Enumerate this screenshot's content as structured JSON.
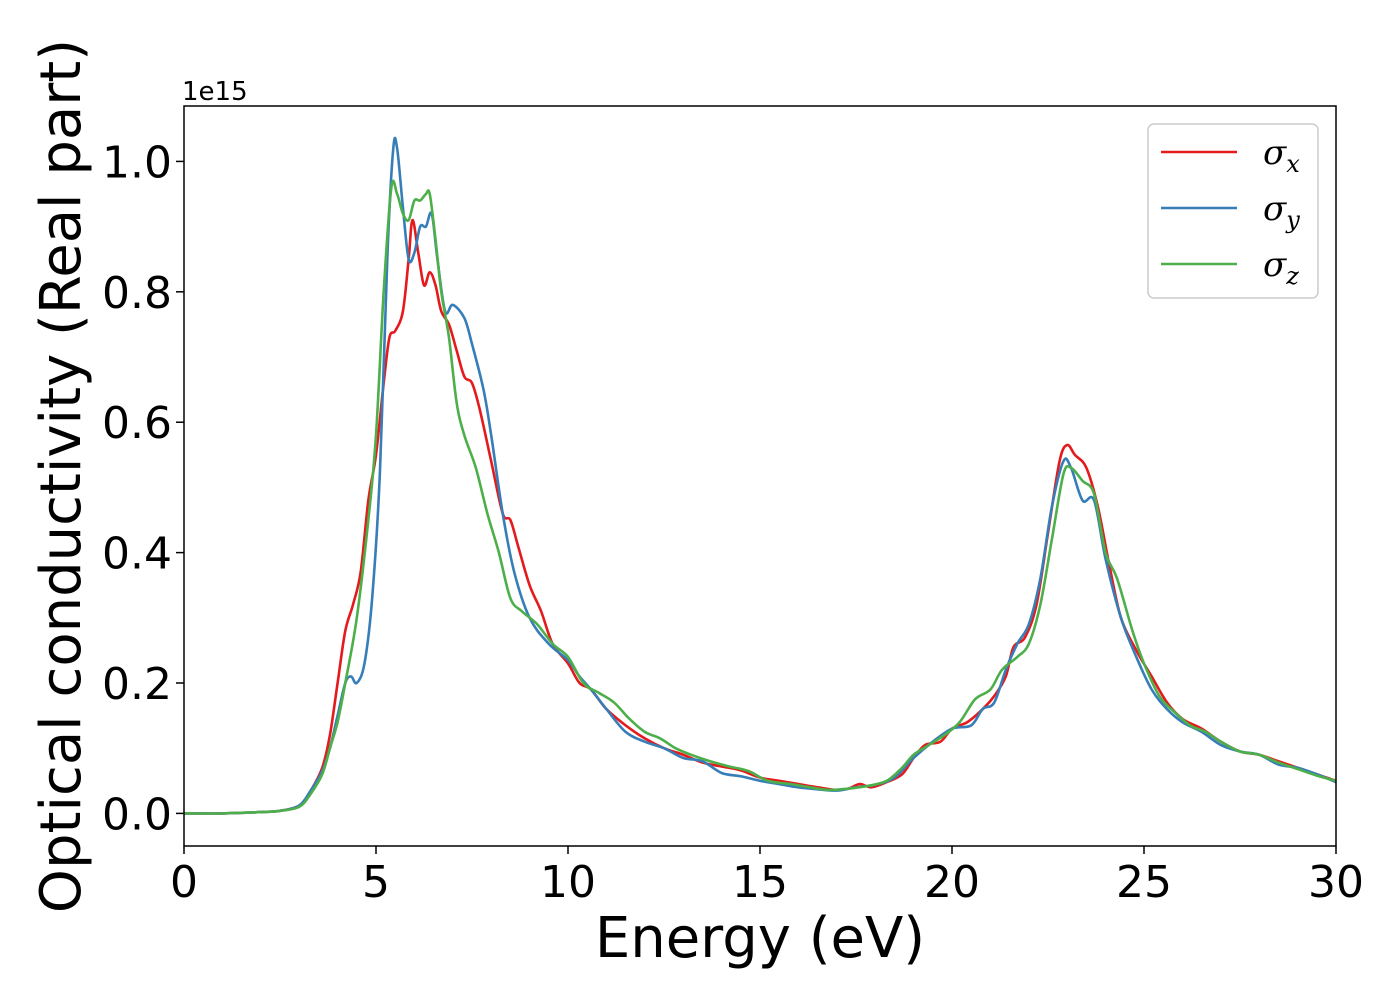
{
  "chart_data": {
    "type": "line",
    "xlabel": "Energy (eV)",
    "ylabel": "Optical conductivity (Real part)",
    "y_offset_label": "1e15",
    "xlim": [
      0,
      30
    ],
    "ylim": [
      -0.05,
      1.085
    ],
    "x_ticks": [
      0,
      5,
      10,
      15,
      20,
      25,
      30
    ],
    "x_tick_labels": [
      "0",
      "5",
      "10",
      "15",
      "20",
      "25",
      "30"
    ],
    "y_ticks": [
      0.0,
      0.2,
      0.4,
      0.6,
      0.8,
      1.0
    ],
    "y_tick_labels": [
      "0.0",
      "0.2",
      "0.4",
      "0.6",
      "0.8",
      "1.0"
    ],
    "grid": false,
    "legend_position": "top-right",
    "series": [
      {
        "name": "σx",
        "legend_symbol": "σ",
        "legend_subscript": "x",
        "color": "#e41a1c",
        "points": [
          [
            0,
            0.0
          ],
          [
            1,
            0.0
          ],
          [
            2,
            0.002
          ],
          [
            2.5,
            0.004
          ],
          [
            3,
            0.012
          ],
          [
            3.3,
            0.035
          ],
          [
            3.6,
            0.07
          ],
          [
            3.8,
            0.12
          ],
          [
            4.0,
            0.2
          ],
          [
            4.2,
            0.28
          ],
          [
            4.4,
            0.32
          ],
          [
            4.6,
            0.37
          ],
          [
            4.8,
            0.48
          ],
          [
            5.0,
            0.55
          ],
          [
            5.2,
            0.66
          ],
          [
            5.35,
            0.73
          ],
          [
            5.5,
            0.74
          ],
          [
            5.7,
            0.77
          ],
          [
            5.85,
            0.85
          ],
          [
            5.95,
            0.91
          ],
          [
            6.1,
            0.86
          ],
          [
            6.25,
            0.81
          ],
          [
            6.4,
            0.83
          ],
          [
            6.55,
            0.81
          ],
          [
            6.7,
            0.77
          ],
          [
            6.9,
            0.75
          ],
          [
            7.1,
            0.71
          ],
          [
            7.3,
            0.67
          ],
          [
            7.5,
            0.66
          ],
          [
            7.7,
            0.62
          ],
          [
            8.0,
            0.54
          ],
          [
            8.3,
            0.46
          ],
          [
            8.5,
            0.45
          ],
          [
            8.7,
            0.41
          ],
          [
            9.0,
            0.35
          ],
          [
            9.3,
            0.31
          ],
          [
            9.6,
            0.26
          ],
          [
            10.0,
            0.23
          ],
          [
            10.3,
            0.2
          ],
          [
            10.6,
            0.19
          ],
          [
            11.0,
            0.16
          ],
          [
            11.5,
            0.135
          ],
          [
            12.0,
            0.115
          ],
          [
            12.5,
            0.1
          ],
          [
            13.0,
            0.09
          ],
          [
            13.5,
            0.078
          ],
          [
            14.0,
            0.072
          ],
          [
            14.5,
            0.066
          ],
          [
            15.0,
            0.055
          ],
          [
            15.5,
            0.05
          ],
          [
            16.0,
            0.045
          ],
          [
            16.5,
            0.04
          ],
          [
            17.0,
            0.036
          ],
          [
            17.3,
            0.038
          ],
          [
            17.6,
            0.045
          ],
          [
            17.9,
            0.04
          ],
          [
            18.3,
            0.048
          ],
          [
            18.7,
            0.06
          ],
          [
            19.0,
            0.085
          ],
          [
            19.3,
            0.105
          ],
          [
            19.7,
            0.11
          ],
          [
            20.0,
            0.13
          ],
          [
            20.4,
            0.14
          ],
          [
            20.8,
            0.16
          ],
          [
            21.1,
            0.18
          ],
          [
            21.4,
            0.21
          ],
          [
            21.6,
            0.255
          ],
          [
            21.9,
            0.27
          ],
          [
            22.2,
            0.32
          ],
          [
            22.5,
            0.43
          ],
          [
            22.8,
            0.54
          ],
          [
            23.0,
            0.565
          ],
          [
            23.2,
            0.55
          ],
          [
            23.5,
            0.53
          ],
          [
            23.8,
            0.47
          ],
          [
            24.1,
            0.38
          ],
          [
            24.4,
            0.3
          ],
          [
            24.8,
            0.25
          ],
          [
            25.2,
            0.21
          ],
          [
            25.6,
            0.17
          ],
          [
            26.0,
            0.145
          ],
          [
            26.5,
            0.13
          ],
          [
            27.0,
            0.11
          ],
          [
            27.5,
            0.095
          ],
          [
            28.0,
            0.09
          ],
          [
            28.5,
            0.08
          ],
          [
            29.0,
            0.07
          ],
          [
            29.5,
            0.06
          ],
          [
            30.0,
            0.05
          ]
        ]
      },
      {
        "name": "σy",
        "legend_symbol": "σ",
        "legend_subscript": "y",
        "color": "#377eb8",
        "points": [
          [
            0,
            0.0
          ],
          [
            1,
            0.0
          ],
          [
            2,
            0.002
          ],
          [
            2.5,
            0.004
          ],
          [
            3,
            0.012
          ],
          [
            3.3,
            0.035
          ],
          [
            3.6,
            0.065
          ],
          [
            3.8,
            0.1
          ],
          [
            4.0,
            0.15
          ],
          [
            4.2,
            0.2
          ],
          [
            4.35,
            0.21
          ],
          [
            4.5,
            0.2
          ],
          [
            4.7,
            0.23
          ],
          [
            4.9,
            0.33
          ],
          [
            5.1,
            0.52
          ],
          [
            5.3,
            0.86
          ],
          [
            5.45,
            1.02
          ],
          [
            5.55,
            1.02
          ],
          [
            5.7,
            0.93
          ],
          [
            5.85,
            0.85
          ],
          [
            6.0,
            0.86
          ],
          [
            6.15,
            0.9
          ],
          [
            6.3,
            0.9
          ],
          [
            6.45,
            0.92
          ],
          [
            6.6,
            0.85
          ],
          [
            6.8,
            0.77
          ],
          [
            7.0,
            0.78
          ],
          [
            7.3,
            0.76
          ],
          [
            7.5,
            0.72
          ],
          [
            7.8,
            0.65
          ],
          [
            8.0,
            0.58
          ],
          [
            8.3,
            0.46
          ],
          [
            8.6,
            0.37
          ],
          [
            9.0,
            0.3
          ],
          [
            9.5,
            0.26
          ],
          [
            10.0,
            0.235
          ],
          [
            10.3,
            0.21
          ],
          [
            10.6,
            0.19
          ],
          [
            11.0,
            0.16
          ],
          [
            11.5,
            0.125
          ],
          [
            12.0,
            0.11
          ],
          [
            12.5,
            0.1
          ],
          [
            13.0,
            0.085
          ],
          [
            13.5,
            0.08
          ],
          [
            14.0,
            0.062
          ],
          [
            14.5,
            0.057
          ],
          [
            15.0,
            0.05
          ],
          [
            15.5,
            0.045
          ],
          [
            16.0,
            0.04
          ],
          [
            16.5,
            0.037
          ],
          [
            17.0,
            0.035
          ],
          [
            17.5,
            0.04
          ],
          [
            18.0,
            0.044
          ],
          [
            18.5,
            0.055
          ],
          [
            19.0,
            0.085
          ],
          [
            19.5,
            0.11
          ],
          [
            20.0,
            0.13
          ],
          [
            20.5,
            0.135
          ],
          [
            20.8,
            0.16
          ],
          [
            21.1,
            0.17
          ],
          [
            21.4,
            0.22
          ],
          [
            21.7,
            0.26
          ],
          [
            22.0,
            0.29
          ],
          [
            22.3,
            0.36
          ],
          [
            22.6,
            0.47
          ],
          [
            22.9,
            0.54
          ],
          [
            23.1,
            0.53
          ],
          [
            23.4,
            0.48
          ],
          [
            23.7,
            0.48
          ],
          [
            24.0,
            0.39
          ],
          [
            24.4,
            0.3
          ],
          [
            24.8,
            0.24
          ],
          [
            25.2,
            0.19
          ],
          [
            25.6,
            0.16
          ],
          [
            26.0,
            0.14
          ],
          [
            26.5,
            0.125
          ],
          [
            27.0,
            0.105
          ],
          [
            27.5,
            0.095
          ],
          [
            28.0,
            0.09
          ],
          [
            28.5,
            0.075
          ],
          [
            29.0,
            0.07
          ],
          [
            29.5,
            0.06
          ],
          [
            30.0,
            0.048
          ]
        ]
      },
      {
        "name": "σz",
        "legend_symbol": "σ",
        "legend_subscript": "z",
        "color": "#4daf4a",
        "points": [
          [
            0,
            0.0
          ],
          [
            1,
            0.0
          ],
          [
            2,
            0.002
          ],
          [
            2.5,
            0.004
          ],
          [
            3,
            0.01
          ],
          [
            3.3,
            0.03
          ],
          [
            3.6,
            0.06
          ],
          [
            3.8,
            0.1
          ],
          [
            4.0,
            0.14
          ],
          [
            4.2,
            0.2
          ],
          [
            4.5,
            0.3
          ],
          [
            4.8,
            0.45
          ],
          [
            5.0,
            0.58
          ],
          [
            5.2,
            0.8
          ],
          [
            5.4,
            0.96
          ],
          [
            5.55,
            0.95
          ],
          [
            5.7,
            0.92
          ],
          [
            5.85,
            0.91
          ],
          [
            6.0,
            0.94
          ],
          [
            6.15,
            0.94
          ],
          [
            6.3,
            0.95
          ],
          [
            6.4,
            0.95
          ],
          [
            6.55,
            0.88
          ],
          [
            6.7,
            0.8
          ],
          [
            6.9,
            0.73
          ],
          [
            7.1,
            0.63
          ],
          [
            7.3,
            0.58
          ],
          [
            7.6,
            0.53
          ],
          [
            7.9,
            0.46
          ],
          [
            8.2,
            0.4
          ],
          [
            8.5,
            0.33
          ],
          [
            8.8,
            0.31
          ],
          [
            9.2,
            0.29
          ],
          [
            9.6,
            0.26
          ],
          [
            10.0,
            0.24
          ],
          [
            10.4,
            0.2
          ],
          [
            10.8,
            0.185
          ],
          [
            11.2,
            0.17
          ],
          [
            11.6,
            0.145
          ],
          [
            12.0,
            0.125
          ],
          [
            12.4,
            0.115
          ],
          [
            12.8,
            0.1
          ],
          [
            13.2,
            0.09
          ],
          [
            13.7,
            0.08
          ],
          [
            14.2,
            0.072
          ],
          [
            14.7,
            0.065
          ],
          [
            15.2,
            0.05
          ],
          [
            15.8,
            0.045
          ],
          [
            16.3,
            0.04
          ],
          [
            16.8,
            0.036
          ],
          [
            17.3,
            0.038
          ],
          [
            17.8,
            0.042
          ],
          [
            18.3,
            0.05
          ],
          [
            18.7,
            0.07
          ],
          [
            19.0,
            0.09
          ],
          [
            19.4,
            0.105
          ],
          [
            19.8,
            0.12
          ],
          [
            20.2,
            0.14
          ],
          [
            20.6,
            0.175
          ],
          [
            21.0,
            0.19
          ],
          [
            21.3,
            0.22
          ],
          [
            21.7,
            0.24
          ],
          [
            22.0,
            0.26
          ],
          [
            22.3,
            0.32
          ],
          [
            22.6,
            0.42
          ],
          [
            22.9,
            0.52
          ],
          [
            23.1,
            0.53
          ],
          [
            23.4,
            0.51
          ],
          [
            23.7,
            0.49
          ],
          [
            24.0,
            0.4
          ],
          [
            24.3,
            0.36
          ],
          [
            24.7,
            0.28
          ],
          [
            25.0,
            0.23
          ],
          [
            25.4,
            0.18
          ],
          [
            25.8,
            0.155
          ],
          [
            26.2,
            0.135
          ],
          [
            26.6,
            0.125
          ],
          [
            27.0,
            0.11
          ],
          [
            27.5,
            0.095
          ],
          [
            28.0,
            0.09
          ],
          [
            28.5,
            0.078
          ],
          [
            29.0,
            0.068
          ],
          [
            29.5,
            0.058
          ],
          [
            30.0,
            0.05
          ]
        ]
      }
    ]
  }
}
